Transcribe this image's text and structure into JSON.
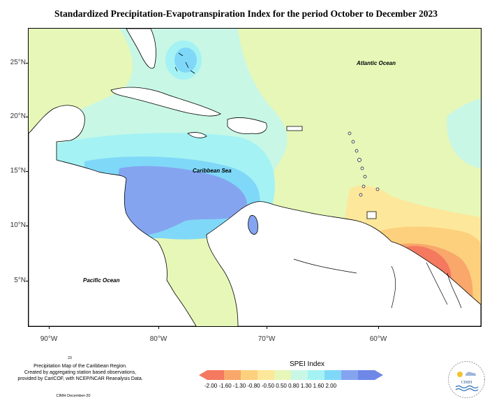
{
  "title": "Standardized Precipitation-Evapotranspiration Index for the period October to December 2023",
  "map": {
    "lat_ticks": [
      "25°N",
      "20°N",
      "15°N",
      "10°N",
      "5°N"
    ],
    "lon_ticks": [
      "90°W",
      "80°W",
      "70°W",
      "60°W"
    ],
    "labels": {
      "atlantic": "Atlantic Ocean",
      "caribbean": "Caribbean Sea",
      "pacific": "Pacific Ocean"
    }
  },
  "legend": {
    "title": "SPEI Index",
    "ticks": "-2.00 -1.60 -1.30 -0.80 -0.50  0.50  0.80  1.30  1.60  2.00",
    "colors": [
      "#f4795f",
      "#f9a76b",
      "#fcd07d",
      "#fde79a",
      "#e6f7b8",
      "#c8f7e6",
      "#a4f2f4",
      "#7fd8f8",
      "#85a4f0",
      "#6f88e8"
    ]
  },
  "footer": {
    "number": "23",
    "line1": "Precipitation Map of the Caribbean Region.",
    "line2": "Created by aggregating station based observations,",
    "line3": "provided by CariCOF, with NCEP/NCAR Reanalysis Data.",
    "credit": "CIMH December-20",
    "logo_text": "CIMH"
  }
}
